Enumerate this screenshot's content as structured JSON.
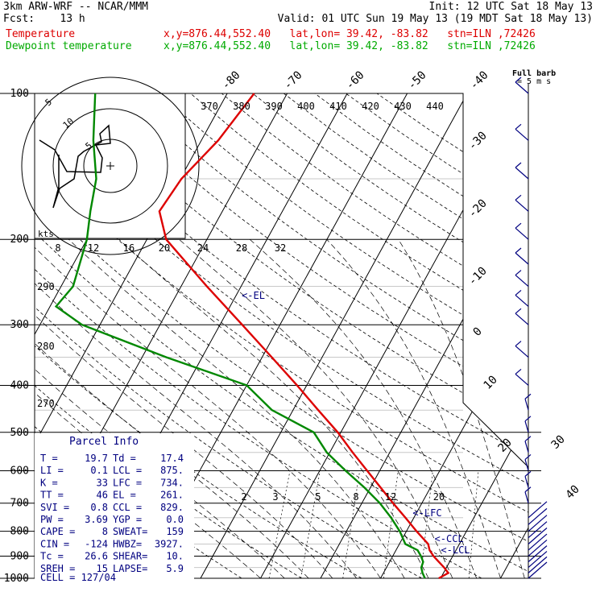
{
  "header": {
    "model": "3km ARW-WRF -- NCAR/MMM",
    "init": "Init: 12 UTC Sat 18 May 13",
    "fcst_label": "Fcst:",
    "fcst_value": "13 h",
    "valid": "Valid: 01 UTC Sun 19 May 13 (19 MDT Sat 18 May 13)",
    "temp_label": "Temperature",
    "dew_label": "Dewpoint temperature",
    "location_line": "x,y=876.44,552.40   lat,lon= 39.42, -83.82   stn=ILN ,72426"
  },
  "colors": {
    "temperature": "#dd0000",
    "dewpoint": "#008800",
    "grid": "#000000",
    "info": "#000080",
    "wind": "#000080"
  },
  "chart_data": {
    "type": "line",
    "y_axis": {
      "name": "pressure",
      "units": "hPa",
      "log_scale": true,
      "range": [
        1000,
        100
      ],
      "ticks": [
        100,
        200,
        300,
        400,
        500,
        600,
        700,
        800,
        900,
        1000
      ]
    },
    "isotherm_labels_top": [
      -80,
      -70,
      -60,
      -50,
      -40
    ],
    "isotherm_labels_right": [
      -30,
      -20,
      -10,
      0,
      10,
      20,
      30,
      40
    ],
    "theta_labels": [
      370,
      380,
      390,
      400,
      410,
      420,
      430,
      440
    ],
    "dry_adiabat_labels_left": [
      290,
      280,
      270
    ],
    "mixing_ratio_labels": [
      2,
      3,
      5,
      8,
      12,
      20
    ],
    "hodograph": {
      "kts_label": "kts",
      "ring_labels": [
        5,
        10
      ],
      "speed_scale_labels": [
        8,
        12,
        16,
        20,
        24,
        28,
        32
      ]
    },
    "series": [
      {
        "name": "Temperature",
        "points": [
          [
            1000,
            19.7
          ],
          [
            975,
            20.8
          ],
          [
            950,
            19.6
          ],
          [
            925,
            18.2
          ],
          [
            900,
            16.8
          ],
          [
            875,
            15.6
          ],
          [
            850,
            14.8
          ],
          [
            800,
            11.7
          ],
          [
            750,
            8.6
          ],
          [
            700,
            5.2
          ],
          [
            650,
            1.7
          ],
          [
            600,
            -2.1
          ],
          [
            550,
            -6.2
          ],
          [
            500,
            -10.5
          ],
          [
            450,
            -15.8
          ],
          [
            400,
            -21.6
          ],
          [
            350,
            -28.4
          ],
          [
            300,
            -36.3
          ],
          [
            250,
            -45.7
          ],
          [
            200,
            -56.8
          ],
          [
            175,
            -60.5
          ],
          [
            150,
            -59.8
          ],
          [
            125,
            -57.2
          ],
          [
            100,
            -55.5
          ]
        ]
      },
      {
        "name": "Dewpoint temperature",
        "points": [
          [
            1000,
            17.4
          ],
          [
            975,
            16.5
          ],
          [
            950,
            15.8
          ],
          [
            925,
            15.6
          ],
          [
            900,
            14.7
          ],
          [
            875,
            13.6
          ],
          [
            850,
            11.0
          ],
          [
            800,
            8.9
          ],
          [
            750,
            6.2
          ],
          [
            700,
            3.0
          ],
          [
            650,
            -1.0
          ],
          [
            600,
            -5.7
          ],
          [
            550,
            -10.5
          ],
          [
            500,
            -14.5
          ],
          [
            450,
            -23.5
          ],
          [
            400,
            -30.0
          ],
          [
            350,
            -46.0
          ],
          [
            300,
            -63.0
          ],
          [
            275,
            -69.0
          ],
          [
            250,
            -68.0
          ],
          [
            200,
            -70.0
          ],
          [
            175,
            -72.0
          ],
          [
            150,
            -74.0
          ],
          [
            125,
            -78.0
          ],
          [
            100,
            -82.0
          ]
        ]
      }
    ],
    "annotations": [
      {
        "text": "<-EL",
        "pressure": 261
      },
      {
        "text": "<-LFC",
        "pressure": 734
      },
      {
        "text": "<-CCL",
        "pressure": 829
      },
      {
        "text": "<-LCL",
        "pressure": 875
      }
    ],
    "wind_barbs": {
      "title": "Full barb",
      "units": "= 5 m s",
      "pressures": [
        1000,
        975,
        950,
        925,
        900,
        875,
        850,
        825,
        800,
        775,
        750,
        700,
        650,
        600,
        550,
        500,
        450,
        400,
        350,
        300,
        275,
        250,
        225,
        200,
        175,
        150,
        125,
        100
      ]
    }
  },
  "parcel_info": {
    "title": "Parcel Info",
    "rows": [
      [
        "T  =",
        "19.7",
        "Td =",
        "17.4"
      ],
      [
        "LI =",
        "0.1",
        "LCL =",
        "875."
      ],
      [
        "K  =",
        "33",
        "LFC =",
        "734."
      ],
      [
        "TT =",
        "46",
        "EL  =",
        "261."
      ],
      [
        "SVI =",
        "0.8",
        "CCL =",
        "829."
      ],
      [
        "PW =",
        "3.69",
        "YGP =",
        "0.0"
      ],
      [
        "CAPE =",
        "8",
        "SWEAT=",
        "159"
      ],
      [
        "CIN =",
        "-124",
        "HWBZ=",
        "3927."
      ],
      [
        "Tc =",
        "26.6",
        "SHEAR=",
        "10."
      ],
      [
        "SREH =",
        "15",
        "LAPSE=",
        "5.9"
      ]
    ],
    "cell": "CELL = 127/04"
  }
}
